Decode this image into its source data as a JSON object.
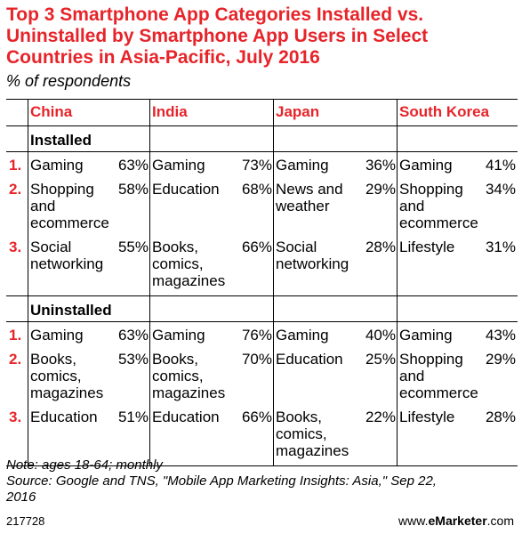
{
  "title_lines": [
    "Top 3 Smartphone App Categories Installed vs.",
    "Uninstalled by Smartphone App Users in Select",
    "Countries in Asia-Pacific, July 2016"
  ],
  "subtitle": "% of respondents",
  "colors": {
    "accent": "#e6242a",
    "text": "#000000"
  },
  "chart_data": {
    "type": "table",
    "countries": [
      "China",
      "India",
      "Japan",
      "South Korea"
    ],
    "sections": [
      {
        "label": "Installed",
        "rows": [
          {
            "rank": "1.",
            "cells": [
              {
                "category": "Gaming",
                "value": "63%"
              },
              {
                "category": "Gaming",
                "value": "73%"
              },
              {
                "category": "Gaming",
                "value": "36%"
              },
              {
                "category": "Gaming",
                "value": "41%"
              }
            ]
          },
          {
            "rank": "2.",
            "cells": [
              {
                "category": "Shopping\nand\necommerce",
                "value": "58%"
              },
              {
                "category": "Education",
                "value": "68%"
              },
              {
                "category": "News and\nweather",
                "value": "29%"
              },
              {
                "category": "Shopping\nand\necommerce",
                "value": "34%"
              }
            ]
          },
          {
            "rank": "3.",
            "cells": [
              {
                "category": "Social\nnetworking",
                "value": "55%"
              },
              {
                "category": "Books,\ncomics,\nmagazines",
                "value": "66%"
              },
              {
                "category": "Social\nnetworking",
                "value": "28%"
              },
              {
                "category": "Lifestyle",
                "value": "31%"
              }
            ]
          }
        ]
      },
      {
        "label": "Uninstalled",
        "rows": [
          {
            "rank": "1.",
            "cells": [
              {
                "category": "Gaming",
                "value": "63%"
              },
              {
                "category": "Gaming",
                "value": "76%"
              },
              {
                "category": "Gaming",
                "value": "40%"
              },
              {
                "category": "Gaming",
                "value": "43%"
              }
            ]
          },
          {
            "rank": "2.",
            "cells": [
              {
                "category": "Books,\ncomics,\nmagazines",
                "value": "53%"
              },
              {
                "category": "Books,\ncomics,\nmagazines",
                "value": "70%"
              },
              {
                "category": "Education",
                "value": "25%"
              },
              {
                "category": "Shopping\nand\necommerce",
                "value": "29%"
              }
            ]
          },
          {
            "rank": "3.",
            "cells": [
              {
                "category": "Education",
                "value": "51%"
              },
              {
                "category": "Education",
                "value": "66%"
              },
              {
                "category": "Books,\ncomics,\nmagazines",
                "value": "22%"
              },
              {
                "category": "Lifestyle",
                "value": "28%"
              }
            ]
          }
        ]
      }
    ]
  },
  "notes": [
    "Note: ages 18-64; monthly",
    "Source: Google and TNS, \"Mobile App Marketing Insights: Asia,\" Sep 22,",
    "2016"
  ],
  "footer": {
    "chart_id": "217728",
    "brand_prefix": "www.",
    "brand_bold": "eMarketer",
    "brand_suffix": ".com"
  }
}
